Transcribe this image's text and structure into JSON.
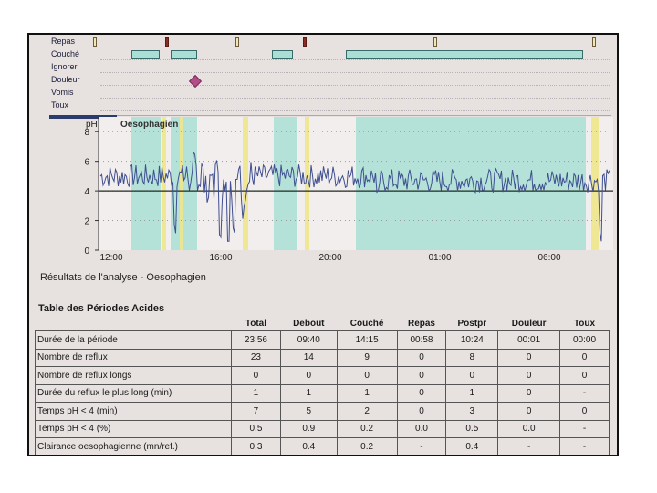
{
  "events": {
    "labels": [
      "Repas",
      "Couché",
      "Ignorer",
      "Douleur",
      "Vomis",
      "Toux"
    ]
  },
  "plot": {
    "channel_title": "Oesophagien",
    "y_axis_label": "pH",
    "y_ticks": [
      "0",
      "2",
      "4",
      "6",
      "8"
    ],
    "x_ticks": [
      "12:00",
      "16:00",
      "20:00",
      "01:00",
      "06:00"
    ],
    "threshold_ph": 4,
    "ylim": [
      0,
      9
    ],
    "colors": {
      "trace": "#3f4f8f",
      "lying": "#a9dfd5",
      "meal": "#efe8b4",
      "threshold": "#202a20"
    }
  },
  "results_title": "Résultats de l'analyse - Oesophagien",
  "table": {
    "title": "Table des Périodes Acides",
    "columns": [
      "Total",
      "Debout",
      "Couché",
      "Repas",
      "Postpr",
      "Douleur",
      "Toux"
    ],
    "rows": [
      {
        "label": "Durée de la période",
        "values": [
          "23:56",
          "09:40",
          "14:15",
          "00:58",
          "10:24",
          "00:01",
          "00:00"
        ]
      },
      {
        "label": "Nombre de reflux",
        "values": [
          "23",
          "14",
          "9",
          "0",
          "8",
          "0",
          "0"
        ]
      },
      {
        "label": "Nombre de reflux longs",
        "values": [
          "0",
          "0",
          "0",
          "0",
          "0",
          "0",
          "0"
        ]
      },
      {
        "label": "Durée du reflux le plus long (min)",
        "values": [
          "1",
          "1",
          "1",
          "0",
          "1",
          "0",
          "-"
        ]
      },
      {
        "label": "Temps pH < 4 (min)",
        "values": [
          "7",
          "5",
          "2",
          "0",
          "3",
          "0",
          "0"
        ]
      },
      {
        "label": "Temps pH < 4 (%)",
        "values": [
          "0.5",
          "0.9",
          "0.2",
          "0.0",
          "0.5",
          "0.0",
          "-"
        ]
      },
      {
        "label": "Clairance oesophagienne (mn/ref.)",
        "values": [
          "0.3",
          "0.4",
          "0.2",
          "-",
          "0.4",
          "-",
          "-"
        ]
      }
    ]
  }
}
